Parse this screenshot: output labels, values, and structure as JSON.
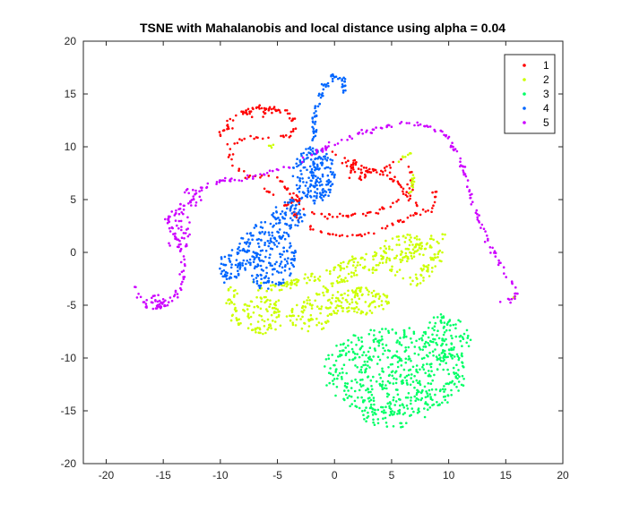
{
  "chart_data": {
    "type": "scatter",
    "title": "TSNE with Mahalanobis and local distance using alpha = 0.04",
    "xlabel": "",
    "ylabel": "",
    "xlim": [
      -22,
      20
    ],
    "ylim": [
      -20,
      20
    ],
    "xticks": [
      -20,
      -15,
      -10,
      -5,
      0,
      5,
      10,
      15,
      20
    ],
    "yticks": [
      -20,
      -15,
      -10,
      -5,
      0,
      5,
      10,
      15,
      20
    ],
    "grid": false,
    "legend_position": "top-right",
    "series": [
      {
        "name": "1",
        "color": "#ff0000",
        "shapes": [
          {
            "kind": "path",
            "pts": [
              [
                -10,
                11
              ],
              [
                -8.5,
                13.2
              ],
              [
                -6.5,
                13.7
              ],
              [
                -4.5,
                13.3
              ],
              [
                -3.3,
                12.2
              ]
            ],
            "width": 0.5,
            "n": 55
          },
          {
            "kind": "path",
            "pts": [
              [
                -3.3,
                12.2
              ],
              [
                -3.7,
                11
              ],
              [
                -5.5,
                10.8
              ],
              [
                -7.5,
                11
              ],
              [
                -9,
                10.3
              ],
              [
                -9.2,
                8.5
              ],
              [
                -7.8,
                7.2
              ],
              [
                -6,
                7.3
              ],
              [
                -4.5,
                6.5
              ],
              [
                -3.5,
                5.3
              ],
              [
                -2.5,
                4.2
              ],
              [
                -1,
                3.5
              ],
              [
                1.5,
                3.5
              ],
              [
                3.5,
                3.8
              ],
              [
                5.5,
                4.8
              ],
              [
                6.5,
                6
              ],
              [
                6.8,
                7.8
              ],
              [
                6,
                8.6
              ],
              [
                5,
                8.3
              ],
              [
                4,
                7.6
              ],
              [
                2,
                7.8
              ],
              [
                0.8,
                8.5
              ]
            ],
            "width": 0.45,
            "n": 130
          },
          {
            "kind": "path",
            "pts": [
              [
                -1.5,
                10
              ],
              [
                0,
                9.3
              ],
              [
                1.5,
                8.7
              ],
              [
                3,
                8
              ],
              [
                4.5,
                7.4
              ],
              [
                5.8,
                6.4
              ],
              [
                6.5,
                5.2
              ],
              [
                7.3,
                4.2
              ],
              [
                8.3,
                3.8
              ],
              [
                8.8,
                4.6
              ],
              [
                8.8,
                5.8
              ]
            ],
            "width": 0.4,
            "n": 50
          },
          {
            "kind": "path",
            "pts": [
              [
                -3.5,
                5.2
              ],
              [
                -3.7,
                4
              ],
              [
                -3,
                3
              ],
              [
                -1.5,
                2
              ],
              [
                0.5,
                1.6
              ],
              [
                2.5,
                1.6
              ],
              [
                4.5,
                2.4
              ],
              [
                5.8,
                3
              ],
              [
                7.2,
                3.7
              ],
              [
                8.5,
                4.4
              ]
            ],
            "width": 0.3,
            "n": 50
          },
          {
            "kind": "path",
            "pts": [
              [
                -3,
                5
              ],
              [
                -4.2,
                4.5
              ],
              [
                -5.5,
                5.5
              ],
              [
                -6,
                6
              ]
            ],
            "width": 0.3,
            "n": 15
          },
          {
            "kind": "blob",
            "cx": 2.3,
            "cy": 7.4,
            "rx": 1.2,
            "ry": 0.7,
            "n": 18
          },
          {
            "kind": "blob",
            "cx": -6.8,
            "cy": 13.3,
            "rx": 1.3,
            "ry": 0.6,
            "n": 14
          }
        ]
      },
      {
        "name": "2",
        "color": "#ccff00",
        "shapes": [
          {
            "kind": "path",
            "pts": [
              [
                -9,
                -3
              ],
              [
                -9.2,
                -5
              ],
              [
                -8.5,
                -6.8
              ],
              [
                -6.8,
                -7.5
              ],
              [
                -5.3,
                -6.8
              ],
              [
                -4.5,
                -5.8
              ],
              [
                -3.2,
                -5.5
              ],
              [
                -1.8,
                -4.3
              ],
              [
                -0.5,
                -3.2
              ],
              [
                1,
                -2.3
              ],
              [
                2.5,
                -1.6
              ],
              [
                4,
                -1.3
              ],
              [
                5.2,
                -1.7
              ],
              [
                6,
                -2.6
              ],
              [
                7.3,
                -2.8
              ],
              [
                8.3,
                -1.2
              ],
              [
                9.5,
                0
              ],
              [
                9.5,
                1.2
              ],
              [
                8.5,
                1.3
              ],
              [
                7.8,
                0.7
              ],
              [
                6.5,
                -0.5
              ],
              [
                5,
                -0.8
              ],
              [
                3.5,
                -0.3
              ],
              [
                2,
                -0.6
              ],
              [
                0.8,
                -1.2
              ],
              [
                -0.5,
                -1.7
              ],
              [
                -2,
                -2.3
              ],
              [
                -3.8,
                -3
              ],
              [
                -5.5,
                -3.3
              ],
              [
                -7.2,
                -3.2
              ]
            ],
            "width": 0.75,
            "n": 330
          },
          {
            "kind": "blob",
            "cx": 2.2,
            "cy": -4.6,
            "rx": 2.8,
            "ry": 1.3,
            "n": 110
          },
          {
            "kind": "blob",
            "cx": -1.8,
            "cy": -6.2,
            "rx": 2.2,
            "ry": 1.3,
            "n": 55
          },
          {
            "kind": "blob",
            "cx": 6.2,
            "cy": 0.5,
            "rx": 2.3,
            "ry": 1.2,
            "n": 60
          },
          {
            "kind": "blob",
            "cx": -6.2,
            "cy": -5.4,
            "rx": 1.8,
            "ry": 1.3,
            "n": 55
          },
          {
            "kind": "path",
            "pts": [
              [
                6.8,
                9.6
              ],
              [
                6.2,
                9
              ],
              [
                5.6,
                8.6
              ]
            ],
            "width": 0.2,
            "n": 8
          },
          {
            "kind": "path",
            "pts": [
              [
                6.8,
                7.8
              ],
              [
                6.9,
                6.2
              ],
              [
                6.5,
                5.4
              ]
            ],
            "width": 0.3,
            "n": 12
          },
          {
            "kind": "blob",
            "cx": -5.5,
            "cy": 10.2,
            "rx": 0.3,
            "ry": 0.3,
            "n": 4
          },
          {
            "kind": "blob",
            "cx": 15.7,
            "cy": -4.2,
            "rx": 0.2,
            "ry": 0.3,
            "n": 3
          }
        ]
      },
      {
        "name": "3",
        "color": "#00ff66",
        "shapes": [
          {
            "kind": "blob",
            "cx": 5.3,
            "cy": -11.3,
            "rx": 6.3,
            "ry": 4.3,
            "n": 520
          },
          {
            "kind": "blob",
            "cx": 9.8,
            "cy": -8,
            "rx": 2.2,
            "ry": 2.2,
            "n": 85
          },
          {
            "kind": "blob",
            "cx": 5.2,
            "cy": -15.5,
            "rx": 2.8,
            "ry": 1.1,
            "n": 45
          }
        ]
      },
      {
        "name": "4",
        "color": "#0066ff",
        "shapes": [
          {
            "kind": "path",
            "pts": [
              [
                -1.8,
                10.5
              ],
              [
                -1.8,
                12.5
              ],
              [
                -1.5,
                14.2
              ],
              [
                -0.8,
                15.8
              ],
              [
                0,
                16.7
              ],
              [
                0.9,
                16.4
              ],
              [
                0.9,
                15.2
              ]
            ],
            "width": 0.4,
            "n": 70
          },
          {
            "kind": "blob",
            "cx": -1.8,
            "cy": 7.3,
            "rx": 1.9,
            "ry": 2.7,
            "n": 190
          },
          {
            "kind": "blob",
            "cx": -6,
            "cy": -0.3,
            "rx": 2.6,
            "ry": 3.2,
            "n": 230
          },
          {
            "kind": "blob",
            "cx": -4,
            "cy": 3.6,
            "rx": 1.5,
            "ry": 1.4,
            "n": 70
          },
          {
            "kind": "blob",
            "cx": -9.2,
            "cy": -1.4,
            "rx": 0.9,
            "ry": 1.7,
            "n": 45
          }
        ]
      },
      {
        "name": "5",
        "color": "#cc00ff",
        "shapes": [
          {
            "kind": "path",
            "pts": [
              [
                -18.8,
                -2
              ],
              [
                -17.6,
                -3.2
              ],
              [
                -16.8,
                -4.8
              ],
              [
                -16,
                -5.4
              ],
              [
                -15,
                -5.1
              ],
              [
                -14,
                -4.2
              ],
              [
                -13.3,
                -2.8
              ],
              [
                -13.2,
                -0.5
              ],
              [
                -13.7,
                1.2
              ],
              [
                -14.5,
                2.3
              ],
              [
                -14.8,
                3.6
              ],
              [
                -13.6,
                4.2
              ],
              [
                -12.6,
                5
              ],
              [
                -11.5,
                6.1
              ],
              [
                -10,
                6.7
              ],
              [
                -8,
                6.9
              ],
              [
                -6,
                7.5
              ],
              [
                -4,
                8.1
              ],
              [
                -2,
                9.2
              ],
              [
                0,
                10.4
              ],
              [
                2,
                11.2
              ],
              [
                4,
                11.8
              ],
              [
                6,
                12.3
              ],
              [
                8,
                12.1
              ],
              [
                9.5,
                11.3
              ],
              [
                10.7,
                9.5
              ],
              [
                11.5,
                7
              ],
              [
                12.2,
                4.5
              ],
              [
                13,
                2
              ],
              [
                14,
                -0.2
              ],
              [
                14.8,
                -1.8
              ],
              [
                15.5,
                -2.8
              ],
              [
                15.9,
                -3.6
              ],
              [
                16,
                -4.2
              ],
              [
                15.6,
                -4.6
              ],
              [
                14.7,
                -4.6
              ]
            ],
            "width": 0.35,
            "n": 250
          },
          {
            "kind": "blob",
            "cx": -15.8,
            "cy": -4.7,
            "rx": 1.3,
            "ry": 0.8,
            "n": 28
          },
          {
            "kind": "blob",
            "cx": -13.7,
            "cy": 2.1,
            "rx": 1.1,
            "ry": 2.2,
            "n": 45
          },
          {
            "kind": "blob",
            "cx": -12.3,
            "cy": 5.3,
            "rx": 1,
            "ry": 0.9,
            "n": 18
          }
        ]
      }
    ]
  }
}
